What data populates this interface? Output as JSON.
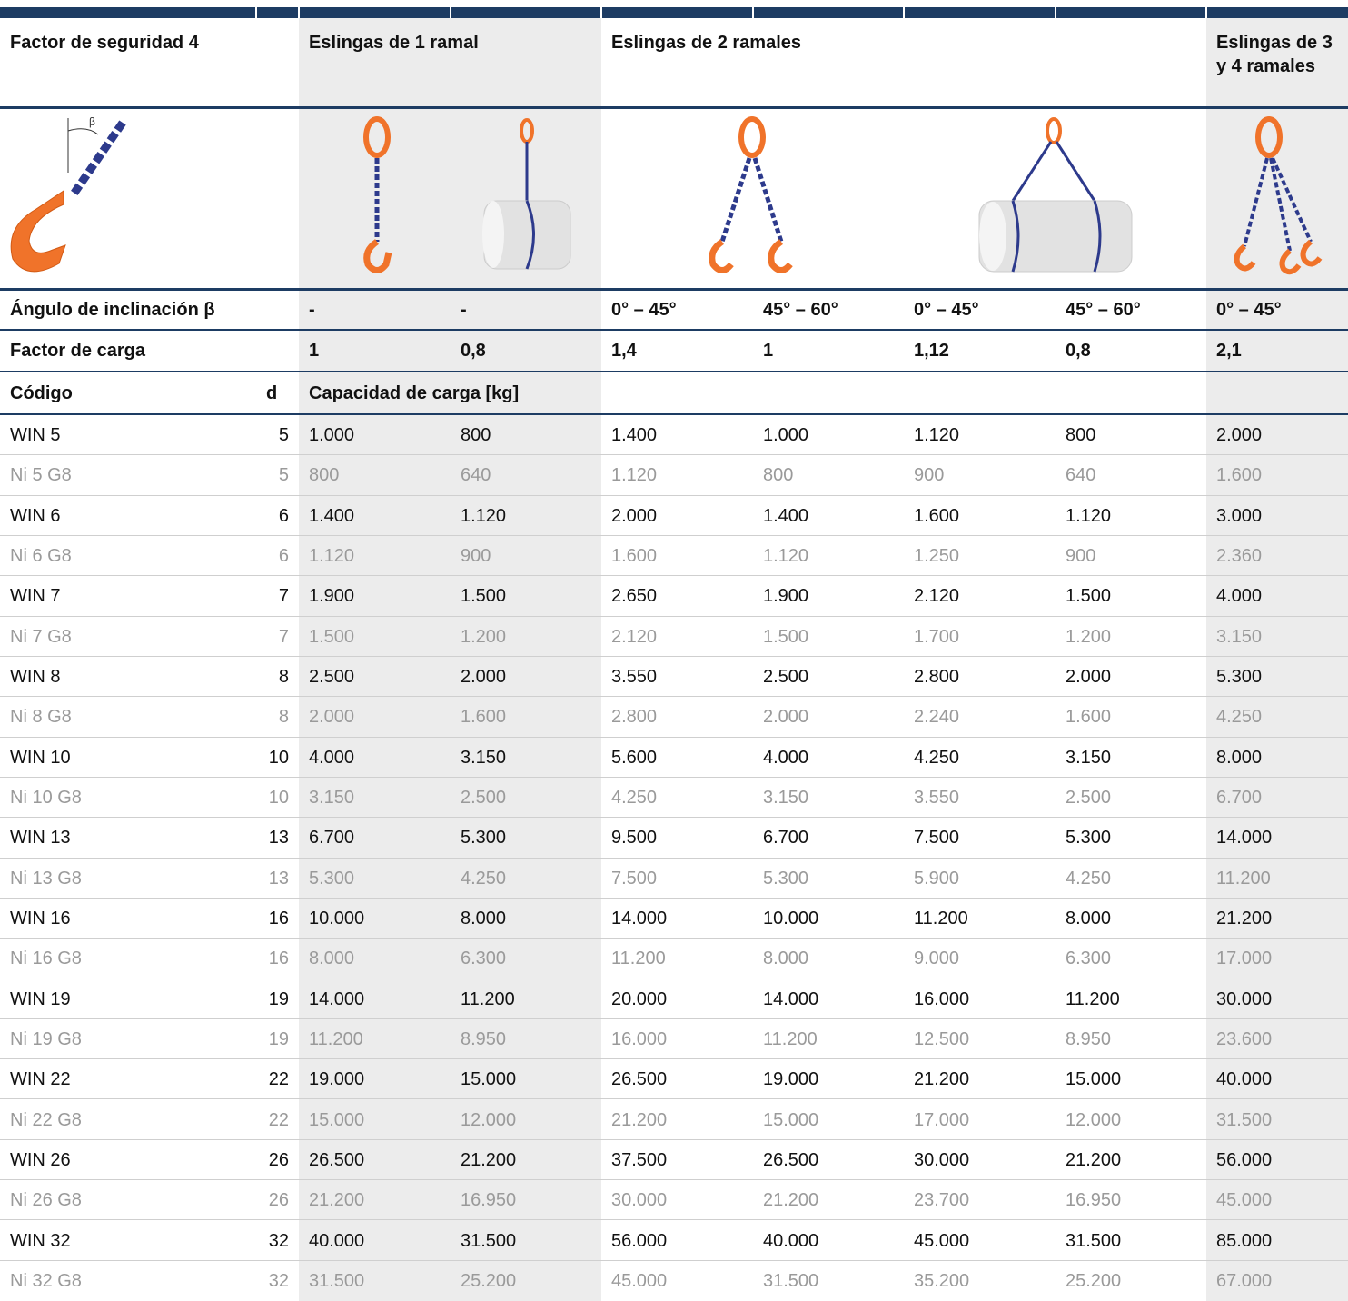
{
  "table": {
    "group_headers": [
      "Factor de seguridad 4",
      "Eslingas de 1 ramal",
      "Eslingas de 2 ramales",
      "Eslingas de 3 y 4 ramales"
    ],
    "angle_row": {
      "label": "Ángulo de inclinación β",
      "values": [
        "-",
        "-",
        "0° – 45°",
        "45° – 60°",
        "0° – 45°",
        "45° – 60°",
        "0° – 45°"
      ]
    },
    "factor_row": {
      "label": "Factor de carga",
      "values": [
        "1",
        "0,8",
        "1,4",
        "1",
        "1,12",
        "0,8",
        "2,1"
      ]
    },
    "column_headers": [
      "Código",
      "d",
      "Capacidad de carga [kg]"
    ],
    "rows": [
      [
        "WIN 5",
        "5",
        "1.000",
        "800",
        "1.400",
        "1.000",
        "1.120",
        "800",
        "2.000"
      ],
      [
        "Ni 5 G8",
        "5",
        "800",
        "640",
        "1.120",
        "800",
        "900",
        "640",
        "1.600"
      ],
      [
        "WIN 6",
        "6",
        "1.400",
        "1.120",
        "2.000",
        "1.400",
        "1.600",
        "1.120",
        "3.000"
      ],
      [
        "Ni 6 G8",
        "6",
        "1.120",
        "900",
        "1.600",
        "1.120",
        "1.250",
        "900",
        "2.360"
      ],
      [
        "WIN 7",
        "7",
        "1.900",
        "1.500",
        "2.650",
        "1.900",
        "2.120",
        "1.500",
        "4.000"
      ],
      [
        "Ni 7 G8",
        "7",
        "1.500",
        "1.200",
        "2.120",
        "1.500",
        "1.700",
        "1.200",
        "3.150"
      ],
      [
        "WIN 8",
        "8",
        "2.500",
        "2.000",
        "3.550",
        "2.500",
        "2.800",
        "2.000",
        "5.300"
      ],
      [
        "Ni 8 G8",
        "8",
        "2.000",
        "1.600",
        "2.800",
        "2.000",
        "2.240",
        "1.600",
        "4.250"
      ],
      [
        "WIN 10",
        "10",
        "4.000",
        "3.150",
        "5.600",
        "4.000",
        "4.250",
        "3.150",
        "8.000"
      ],
      [
        "Ni 10 G8",
        "10",
        "3.150",
        "2.500",
        "4.250",
        "3.150",
        "3.550",
        "2.500",
        "6.700"
      ],
      [
        "WIN 13",
        "13",
        "6.700",
        "5.300",
        "9.500",
        "6.700",
        "7.500",
        "5.300",
        "14.000"
      ],
      [
        "Ni 13 G8",
        "13",
        "5.300",
        "4.250",
        "7.500",
        "5.300",
        "5.900",
        "4.250",
        "11.200"
      ],
      [
        "WIN 16",
        "16",
        "10.000",
        "8.000",
        "14.000",
        "10.000",
        "11.200",
        "8.000",
        "21.200"
      ],
      [
        "Ni 16 G8",
        "16",
        "8.000",
        "6.300",
        "11.200",
        "8.000",
        "9.000",
        "6.300",
        "17.000"
      ],
      [
        "WIN 19",
        "19",
        "14.000",
        "11.200",
        "20.000",
        "14.000",
        "16.000",
        "11.200",
        "30.000"
      ],
      [
        "Ni 19 G8",
        "19",
        "11.200",
        "8.950",
        "16.000",
        "11.200",
        "12.500",
        "8.950",
        "23.600"
      ],
      [
        "WIN 22",
        "22",
        "19.000",
        "15.000",
        "26.500",
        "19.000",
        "21.200",
        "15.000",
        "40.000"
      ],
      [
        "Ni 22 G8",
        "22",
        "15.000",
        "12.000",
        "21.200",
        "15.000",
        "17.000",
        "12.000",
        "31.500"
      ],
      [
        "WIN 26",
        "26",
        "26.500",
        "21.200",
        "37.500",
        "26.500",
        "30.000",
        "21.200",
        "56.000"
      ],
      [
        "Ni 26 G8",
        "26",
        "21.200",
        "16.950",
        "30.000",
        "21.200",
        "23.700",
        "16.950",
        "45.000"
      ],
      [
        "WIN 32",
        "32",
        "40.000",
        "31.500",
        "56.000",
        "40.000",
        "45.000",
        "31.500",
        "85.000"
      ],
      [
        "Ni 32 G8",
        "32",
        "31.500",
        "25.200",
        "45.000",
        "31.500",
        "35.200",
        "25.200",
        "67.000"
      ]
    ]
  }
}
